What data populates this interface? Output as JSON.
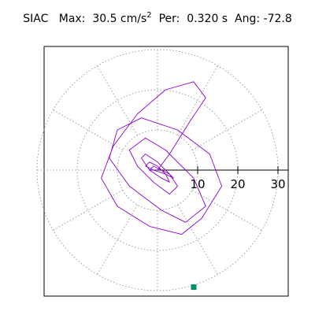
{
  "header": {
    "station": "SIAC",
    "max_label": "Max:",
    "max_value": "30.5 cm/s",
    "max_exp": "2",
    "per_label": "Per:",
    "per_value": "0.320 s",
    "ang_label": "Ang:",
    "ang_value": "-72.8"
  },
  "chart_data": {
    "type": "scatter",
    "title": "SIAC Max: 30.5 cm/s2 Per: 0.320 s Ang: -72.8",
    "subtype": "polar particle-motion (hodogram)",
    "radial_ticks": [
      10,
      20,
      30
    ],
    "radial_tick_labels": [
      "10",
      "20",
      "30"
    ],
    "radial_max": 30,
    "angular_gridlines_deg": [
      0,
      30,
      60,
      90,
      120,
      150,
      180,
      210,
      240,
      270,
      300,
      330
    ],
    "grid": true,
    "max_amplitude": 30.5,
    "max_point": {
      "angle_deg": -72.8,
      "radius": 30.5
    },
    "trace_color": "#8b00cc",
    "marker_color": "#008f6b",
    "trace": {
      "x": [
        0,
        3,
        8,
        12,
        9,
        2,
        -5,
        -11,
        -14,
        -10,
        -2,
        6,
        11,
        16,
        13,
        5,
        -4,
        -10,
        -12,
        -7,
        1,
        7,
        12,
        9,
        2,
        -3,
        -7,
        -5,
        -1,
        3,
        5,
        3,
        0,
        -3,
        -4,
        -2,
        1,
        3,
        2,
        0,
        -2,
        -3,
        -1,
        2,
        4,
        3,
        1,
        -1,
        -2,
        0
      ],
      "y": [
        0,
        4,
        12,
        18,
        22,
        20,
        14,
        6,
        -2,
        -9,
        -14,
        -16,
        -12,
        -4,
        4,
        10,
        13,
        10,
        3,
        -4,
        -10,
        -13,
        -9,
        -2,
        5,
        8,
        5,
        1,
        -3,
        -6,
        -4,
        -1,
        2,
        4,
        3,
        0,
        -2,
        -3,
        -1,
        1,
        2,
        1,
        0,
        -1,
        -2,
        -1,
        0,
        1,
        0,
        0
      ]
    }
  }
}
